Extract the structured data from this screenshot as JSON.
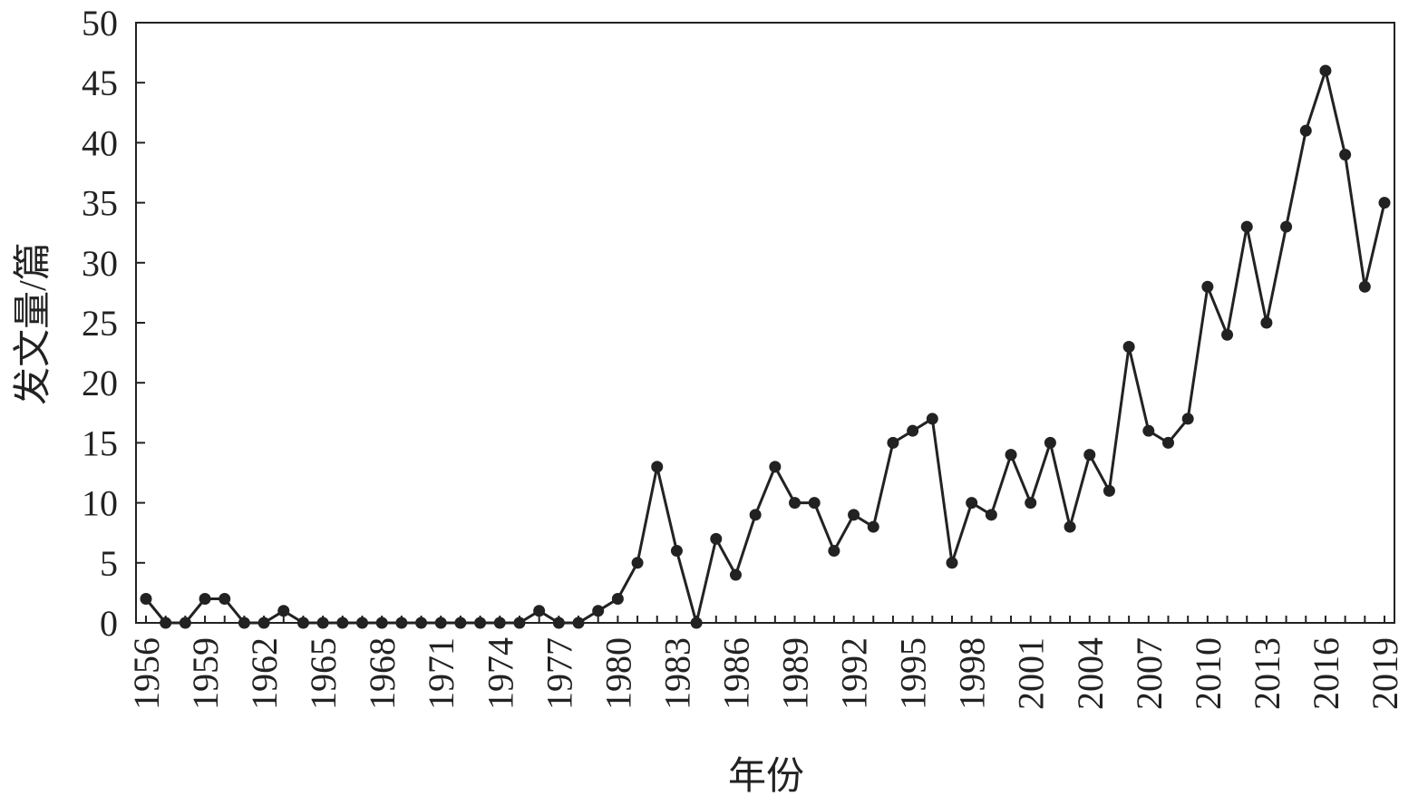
{
  "chart_data": {
    "type": "line",
    "xlabel": "年份",
    "ylabel": "发文量/篇",
    "ylim": [
      0,
      50
    ],
    "yticks": [
      "0",
      "5",
      "10",
      "15",
      "20",
      "25",
      "30",
      "35",
      "40",
      "45",
      "50"
    ],
    "xlim": [
      1956,
      2019
    ],
    "xticks": [
      "1956",
      "1959",
      "1962",
      "1965",
      "1968",
      "1971",
      "1974",
      "1977",
      "1980",
      "1983",
      "1986",
      "1989",
      "1992",
      "1995",
      "1998",
      "2001",
      "2004",
      "2007",
      "2010",
      "2013",
      "2016",
      "2019"
    ],
    "grid": false,
    "marker": "circle",
    "line_color": "#222222",
    "x": [
      1956,
      1957,
      1958,
      1959,
      1960,
      1961,
      1962,
      1963,
      1964,
      1965,
      1966,
      1967,
      1968,
      1969,
      1970,
      1971,
      1972,
      1973,
      1974,
      1975,
      1976,
      1977,
      1978,
      1979,
      1980,
      1981,
      1982,
      1983,
      1984,
      1985,
      1986,
      1987,
      1988,
      1989,
      1990,
      1991,
      1992,
      1993,
      1994,
      1995,
      1996,
      1997,
      1998,
      1999,
      2000,
      2001,
      2002,
      2003,
      2004,
      2005,
      2006,
      2007,
      2008,
      2009,
      2010,
      2011,
      2012,
      2013,
      2014,
      2015,
      2016,
      2017,
      2018,
      2019
    ],
    "values": [
      2,
      0,
      0,
      2,
      2,
      0,
      0,
      1,
      0,
      0,
      0,
      0,
      0,
      0,
      0,
      0,
      0,
      0,
      0,
      0,
      1,
      0,
      0,
      1,
      2,
      5,
      13,
      6,
      0,
      7,
      4,
      9,
      13,
      10,
      10,
      6,
      9,
      8,
      15,
      16,
      17,
      5,
      10,
      9,
      14,
      10,
      15,
      8,
      14,
      11,
      23,
      16,
      15,
      17,
      28,
      24,
      33,
      25,
      33,
      41,
      46,
      39,
      28,
      35
    ]
  }
}
